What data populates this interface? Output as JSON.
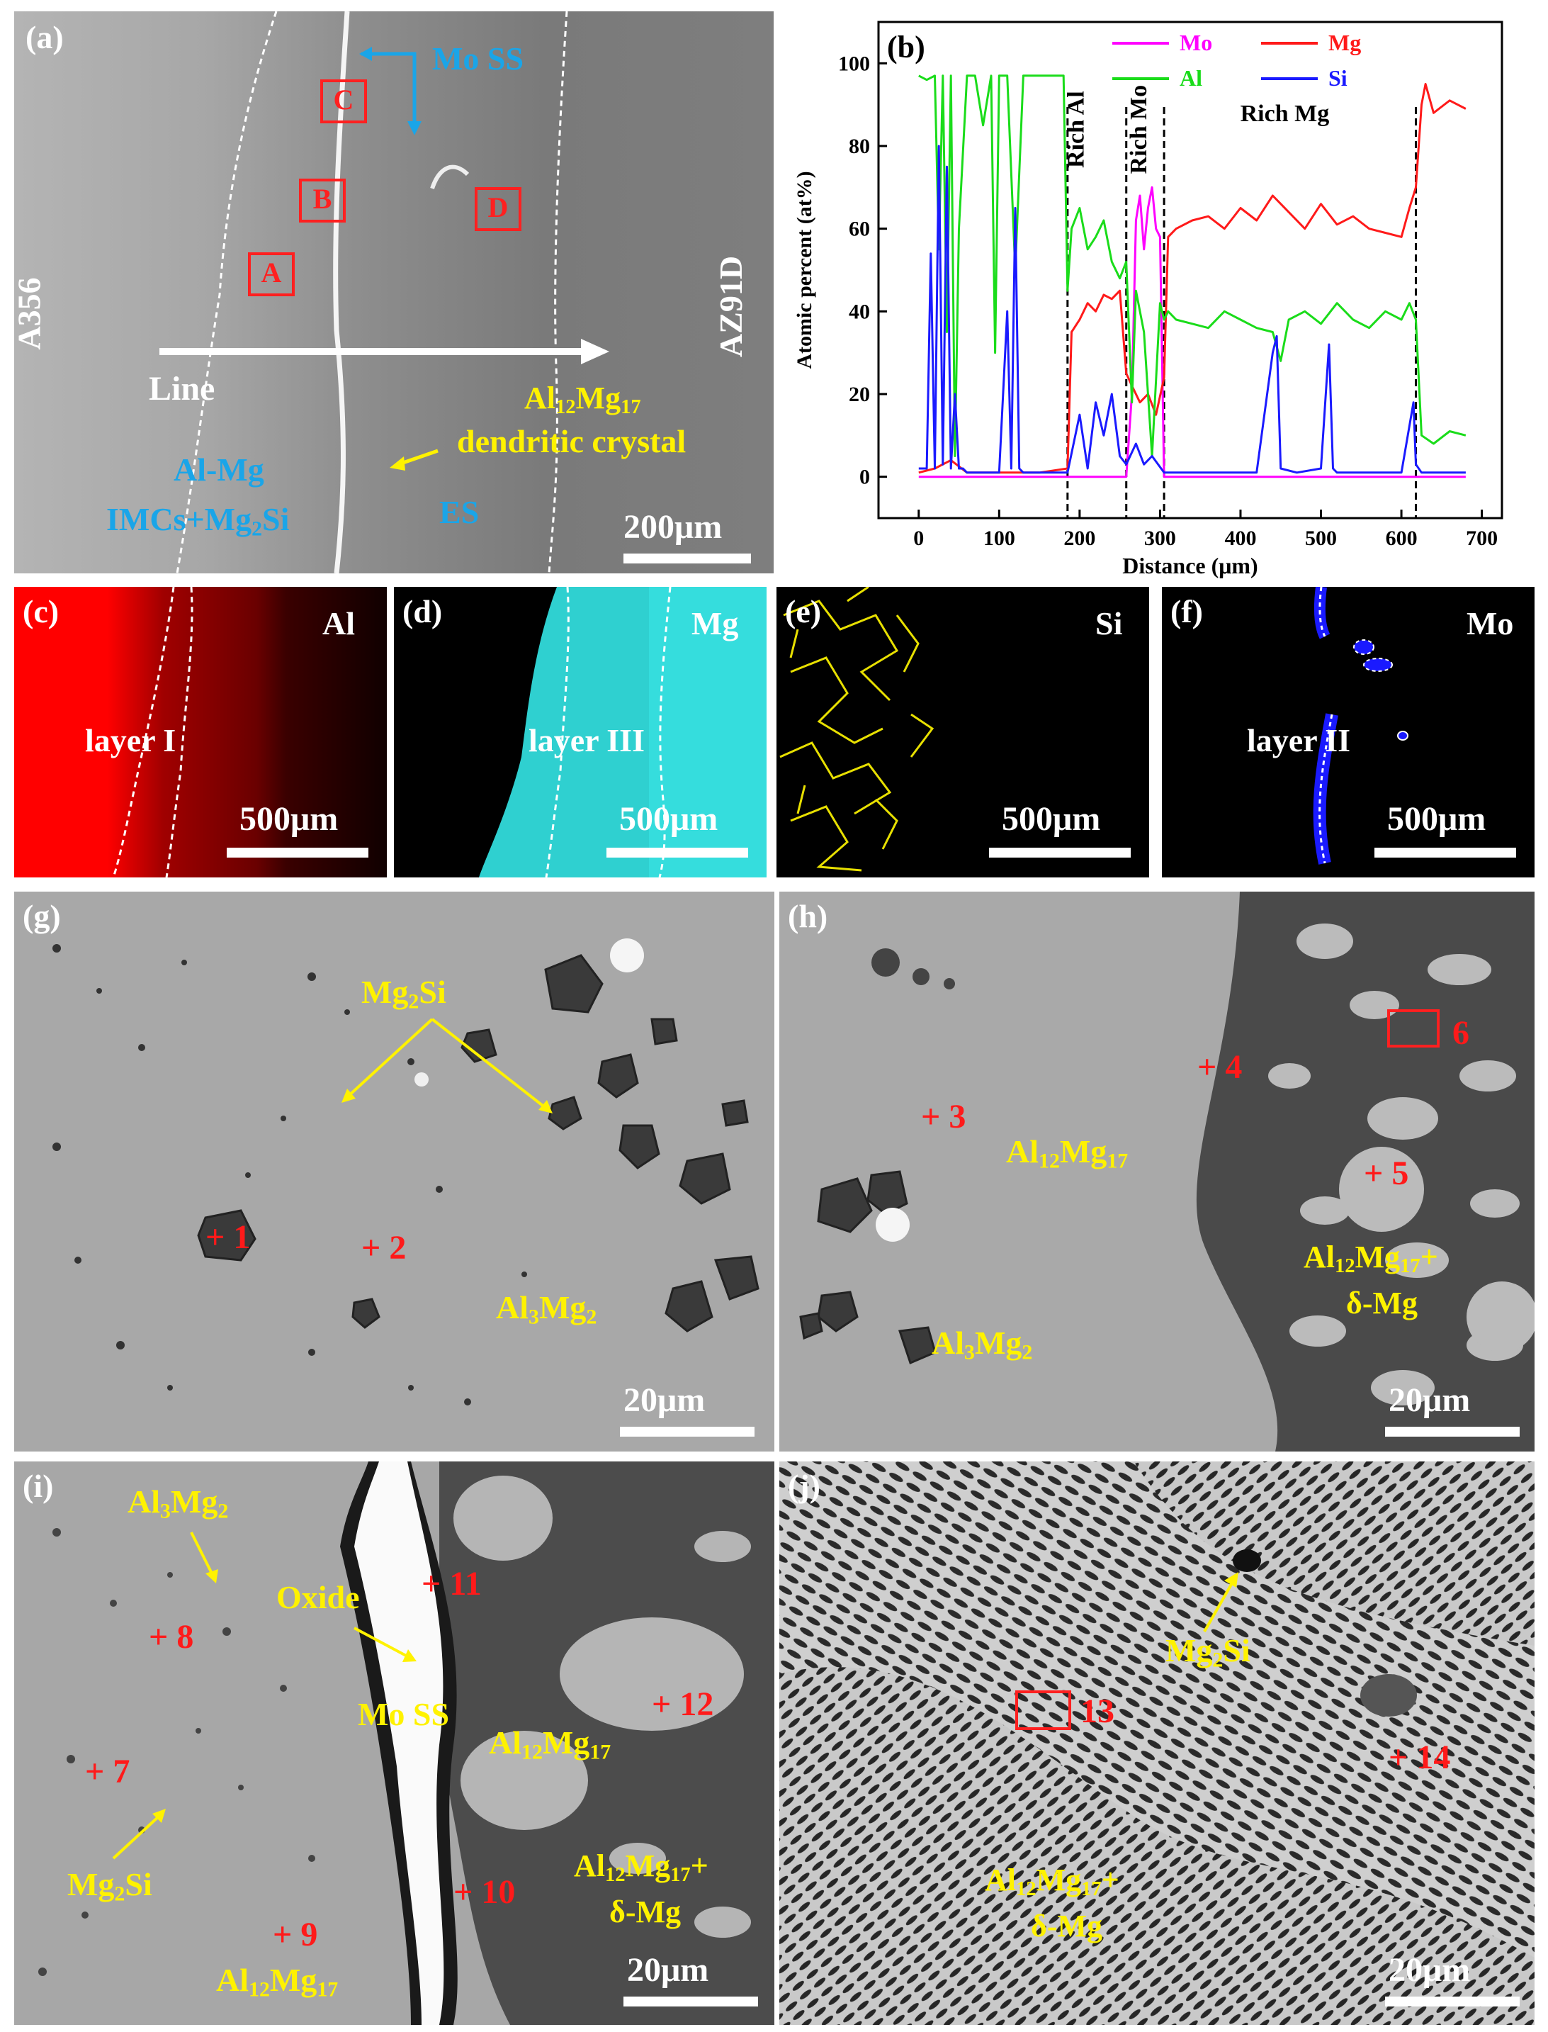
{
  "panel_a": {
    "label": "(a)",
    "left_material": "A356",
    "right_material": "AZ91D",
    "mo_ss": "Mo SS",
    "boxes": [
      "C",
      "B",
      "D",
      "A"
    ],
    "line": "Line",
    "al12mg17_line1": "Al12Mg17",
    "al12mg17_line2": "dendritic crystal",
    "almg_line1": "Al-Mg",
    "almg_line2": "IMCs+Mg2Si",
    "es": "ES",
    "scale": "200μm"
  },
  "panel_b": {
    "label": "(b)",
    "rich_al": "Rich Al",
    "rich_mo": "Rich Mo",
    "rich_mg": "Rich Mg",
    "boundaries": [
      185,
      258,
      305,
      618
    ]
  },
  "chart_data": {
    "type": "line",
    "xlabel": "Distance (μm)",
    "ylabel": "Atomic percent (at%)",
    "xlim": [
      -50,
      725
    ],
    "ylim": [
      -10,
      110
    ],
    "xticks": [
      0,
      100,
      200,
      300,
      400,
      500,
      600,
      700
    ],
    "yticks": [
      0,
      20,
      40,
      60,
      80,
      100
    ],
    "legend_position": "top",
    "series": [
      {
        "name": "Mo",
        "color": "#ff00ff",
        "x": [
          0,
          185,
          250,
          258,
          265,
          270,
          275,
          280,
          285,
          290,
          295,
          300,
          305,
          310,
          400,
          500,
          618,
          680
        ],
        "y": [
          0,
          0,
          0,
          0,
          20,
          62,
          68,
          55,
          65,
          70,
          60,
          58,
          0,
          0,
          0,
          0,
          0,
          0
        ]
      },
      {
        "name": "Mg",
        "color": "#ff1a1a",
        "x": [
          0,
          20,
          40,
          60,
          100,
          150,
          185,
          190,
          200,
          210,
          220,
          230,
          240,
          250,
          258,
          265,
          275,
          285,
          295,
          305,
          310,
          320,
          340,
          360,
          380,
          400,
          420,
          440,
          460,
          480,
          500,
          520,
          540,
          560,
          580,
          600,
          610,
          618,
          625,
          630,
          640,
          660,
          680
        ],
        "y": [
          1,
          2,
          4,
          1,
          1,
          1,
          2,
          35,
          38,
          42,
          40,
          44,
          43,
          45,
          25,
          22,
          18,
          20,
          15,
          24,
          58,
          60,
          62,
          63,
          60,
          65,
          62,
          68,
          64,
          60,
          66,
          61,
          63,
          60,
          59,
          58,
          65,
          70,
          90,
          95,
          88,
          91,
          89
        ]
      },
      {
        "name": "Al",
        "color": "#1adc1a",
        "x": [
          0,
          10,
          20,
          25,
          30,
          35,
          40,
          45,
          50,
          60,
          70,
          80,
          90,
          95,
          100,
          110,
          120,
          130,
          140,
          150,
          160,
          170,
          180,
          185,
          190,
          200,
          210,
          220,
          230,
          240,
          250,
          258,
          265,
          270,
          280,
          290,
          300,
          305,
          310,
          320,
          340,
          360,
          380,
          400,
          420,
          440,
          450,
          460,
          480,
          500,
          520,
          540,
          560,
          580,
          600,
          610,
          618,
          625,
          640,
          660,
          680
        ],
        "y": [
          97,
          96,
          97,
          55,
          97,
          35,
          97,
          5,
          60,
          97,
          97,
          85,
          97,
          30,
          97,
          97,
          50,
          97,
          97,
          97,
          97,
          97,
          97,
          45,
          60,
          65,
          55,
          58,
          62,
          52,
          48,
          52,
          18,
          45,
          35,
          5,
          42,
          38,
          40,
          38,
          37,
          36,
          40,
          38,
          36,
          35,
          28,
          38,
          40,
          37,
          42,
          38,
          36,
          40,
          38,
          42,
          38,
          10,
          8,
          11,
          10
        ]
      },
      {
        "name": "Si",
        "color": "#1a1aff",
        "x": [
          0,
          10,
          15,
          20,
          25,
          30,
          35,
          40,
          45,
          50,
          55,
          60,
          80,
          100,
          110,
          115,
          120,
          125,
          130,
          140,
          150,
          185,
          200,
          210,
          220,
          230,
          240,
          250,
          258,
          270,
          280,
          290,
          305,
          310,
          400,
          420,
          440,
          445,
          450,
          470,
          500,
          510,
          515,
          520,
          540,
          600,
          615,
          618,
          625,
          680
        ],
        "y": [
          2,
          2,
          54,
          2,
          80,
          3,
          75,
          2,
          20,
          2,
          2,
          1,
          1,
          1,
          40,
          2,
          65,
          2,
          1,
          1,
          1,
          1,
          15,
          2,
          18,
          10,
          20,
          5,
          3,
          8,
          3,
          5,
          1,
          1,
          1,
          1,
          30,
          34,
          2,
          1,
          2,
          32,
          2,
          1,
          1,
          1,
          18,
          3,
          1,
          1
        ]
      }
    ]
  },
  "panel_c": {
    "label": "(c)",
    "element": "Al",
    "layer": "layer I",
    "scale": "500μm"
  },
  "panel_d": {
    "label": "(d)",
    "element": "Mg",
    "layer": "layer III",
    "scale": "500μm"
  },
  "panel_e": {
    "label": "(e)",
    "element": "Si",
    "scale": "500μm"
  },
  "panel_f": {
    "label": "(f)",
    "element": "Mo",
    "layer": "layer II",
    "scale": "500μm"
  },
  "panel_g": {
    "label": "(g)",
    "mg2si": "Mg2Si",
    "p1": "+ 1",
    "p2": "+ 2",
    "al3mg2": "Al3Mg2",
    "scale": "20μm"
  },
  "panel_h": {
    "label": "(h)",
    "p3": "+ 3",
    "p4": "+ 4",
    "p5": "+ 5",
    "p6": "6",
    "al12mg17": "Al12Mg17",
    "eut1": "Al12Mg17+",
    "eut2": "δ-Mg",
    "al3mg2": "Al3Mg2",
    "scale": "20μm"
  },
  "panel_i": {
    "label": "(i)",
    "al3mg2": "Al3Mg2",
    "oxide": "Oxide",
    "p7": "+ 7",
    "p8": "+ 8",
    "p9": "+ 9",
    "p10": "+ 10",
    "p11": "+ 11",
    "p12": "+ 12",
    "mo_ss": "Mo SS",
    "al12mg17_a": "Al12Mg17",
    "al12mg17_b": "Al12Mg17",
    "eut1": "Al12Mg17+",
    "eut2": "δ-Mg",
    "mg2si": "Mg2Si",
    "scale": "20μm"
  },
  "panel_j": {
    "label": "(j)",
    "mg2si": "Mg2Si",
    "p13": "13",
    "p14": "+ 14",
    "eut1": "Al12Mg17+",
    "eut2": "δ-Mg",
    "scale": "20μm"
  }
}
